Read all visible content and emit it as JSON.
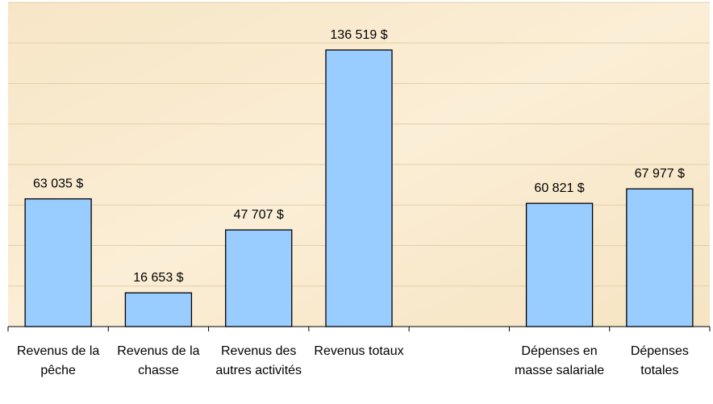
{
  "chart_data": {
    "type": "bar",
    "categories": [
      "Revenus de la pêche",
      "Revenus de la chasse",
      "Revenus des autres activités",
      "Revenus totaux",
      null,
      "Dépenses en masse salariale",
      "Dépenses totales"
    ],
    "values": [
      63035,
      16653,
      47707,
      136519,
      null,
      60821,
      67977
    ],
    "value_labels": [
      "63 035 $",
      "16 653 $",
      "47 707 $",
      "136 519 $",
      null,
      "60 821 $",
      "67 977 $"
    ],
    "color": "#99ccff",
    "ylim": [
      0,
      160000
    ],
    "yticks": [
      0,
      20000,
      40000,
      60000,
      80000,
      100000,
      120000,
      140000,
      160000
    ],
    "grid": true
  }
}
